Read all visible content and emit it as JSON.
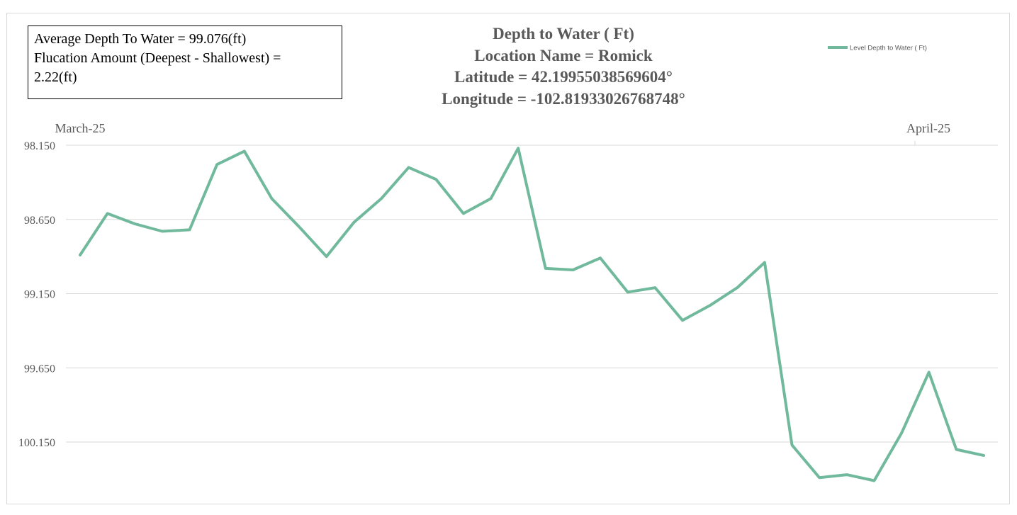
{
  "stats": {
    "line1": "Average Depth To Water = 99.076(ft)",
    "line2": "Flucation Amount (Deepest - Shallowest) =",
    "line3": "2.22(ft)"
  },
  "title": {
    "line1": "Depth to Water ( Ft)",
    "line2": "Location Name = Romick",
    "line3": "Latitude = 42.19955038569604°",
    "line4": "Longitude = -102.81933026768748°"
  },
  "colors": {
    "series": "#70b99c",
    "grid": "#d9d9d9",
    "axis_text": "#595959"
  },
  "chart_data": {
    "type": "line",
    "title": "Depth to Water ( Ft)",
    "y_axis": {
      "reversed": true,
      "ticks": [
        "98.150",
        "98.650",
        "99.150",
        "99.650",
        "100.150"
      ],
      "tick_values": [
        98.15,
        98.65,
        99.15,
        99.65,
        100.15
      ],
      "range": [
        98.15,
        100.15
      ]
    },
    "x_axis": {
      "ticks": [
        "March-25",
        "April-25"
      ],
      "grid": false
    },
    "grid": "horizontal",
    "legend": {
      "position": "top-right"
    },
    "series": [
      {
        "name": "Level Depth to Water ( Ft)",
        "values": [
          98.89,
          98.61,
          98.68,
          98.73,
          98.72,
          98.28,
          98.19,
          98.51,
          98.7,
          98.9,
          98.67,
          98.51,
          98.3,
          98.38,
          98.61,
          98.51,
          98.17,
          98.98,
          98.99,
          98.91,
          99.14,
          99.11,
          99.33,
          99.23,
          99.11,
          98.94,
          100.17,
          100.39,
          100.37,
          100.41,
          100.09,
          99.68,
          100.2,
          100.24
        ]
      }
    ]
  }
}
